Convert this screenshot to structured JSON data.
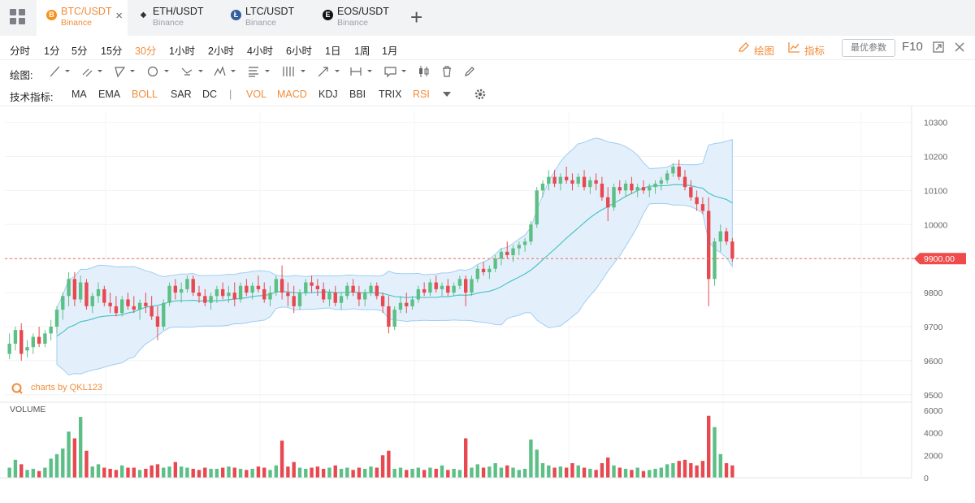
{
  "tabs": [
    {
      "pair": "BTC/USDT",
      "exchange": "Binance",
      "icon": "bitcoin-icon",
      "color": "#f7931a",
      "glyph": "B",
      "active": true
    },
    {
      "pair": "ETH/USDT",
      "exchange": "Binance",
      "icon": "ethereum-icon",
      "color": "#333333",
      "glyph": "◆",
      "active": false
    },
    {
      "pair": "LTC/USDT",
      "exchange": "Binance",
      "icon": "litecoin-icon",
      "color": "#345d9d",
      "glyph": "Ł",
      "active": false
    },
    {
      "pair": "EOS/USDT",
      "exchange": "Binance",
      "icon": "eos-icon",
      "color": "#111111",
      "glyph": "E",
      "active": false
    }
  ],
  "periods": [
    "分时",
    "1分",
    "5分",
    "15分",
    "30分",
    "1小时",
    "2小时",
    "4小时",
    "6小时",
    "1日",
    "1周",
    "1月"
  ],
  "active_period": "30分",
  "toolbar": {
    "draw": "绘图",
    "indicator": "指标",
    "best_params": "最优参数",
    "f10": "F10"
  },
  "drawing": {
    "label": "绘图:"
  },
  "indicators": {
    "label": "技术指标:",
    "items": [
      {
        "name": "MA",
        "on": false
      },
      {
        "name": "EMA",
        "on": false
      },
      {
        "name": "BOLL",
        "on": true
      },
      {
        "name": "SAR",
        "on": false
      },
      {
        "name": "DC",
        "on": false
      },
      {
        "name": "VOL",
        "on": true
      },
      {
        "name": "MACD",
        "on": true
      },
      {
        "name": "KDJ",
        "on": false
      },
      {
        "name": "BBI",
        "on": false
      },
      {
        "name": "TRIX",
        "on": false
      },
      {
        "name": "RSI",
        "on": true
      }
    ],
    "separator": "|"
  },
  "watermark": "charts by QKL123",
  "colors": {
    "accent": "#f08c3a",
    "up": "#5cbf86",
    "down": "#e8484f",
    "boll_mid": "#4fc3c3",
    "boll_fill": "#e3f0fc",
    "boll_edge": "#9fcdf1"
  },
  "chart_data": {
    "type": "candlestick",
    "price_ticks": [
      "10300",
      "10200",
      "10100",
      "10000",
      "9900",
      "9800",
      "9700",
      "9600",
      "9500"
    ],
    "price_ylim": [
      9490,
      10330
    ],
    "last_price": "9900.00",
    "volume_label": "VOLUME",
    "volume_ticks": [
      "6000",
      "4000",
      "2000",
      "0"
    ],
    "volume_ylim": [
      0,
      6200
    ],
    "candles": [
      [
        9620,
        9680,
        9605,
        9650,
        900
      ],
      [
        9650,
        9700,
        9630,
        9690,
        1600
      ],
      [
        9690,
        9710,
        9600,
        9620,
        1200
      ],
      [
        9630,
        9660,
        9610,
        9640,
        700
      ],
      [
        9640,
        9680,
        9620,
        9670,
        800
      ],
      [
        9670,
        9700,
        9640,
        9650,
        600
      ],
      [
        9650,
        9690,
        9640,
        9680,
        900
      ],
      [
        9680,
        9720,
        9660,
        9700,
        1700
      ],
      [
        9700,
        9760,
        9680,
        9750,
        2100
      ],
      [
        9750,
        9800,
        9720,
        9790,
        2600
      ],
      [
        9790,
        9860,
        9760,
        9840,
        4100
      ],
      [
        9840,
        9860,
        9760,
        9780,
        3500
      ],
      [
        9780,
        9850,
        9770,
        9830,
        5400
      ],
      [
        9830,
        9840,
        9750,
        9760,
        2400
      ],
      [
        9760,
        9800,
        9740,
        9790,
        1000
      ],
      [
        9790,
        9830,
        9770,
        9810,
        1200
      ],
      [
        9810,
        9820,
        9760,
        9770,
        900
      ],
      [
        9770,
        9800,
        9740,
        9760,
        800
      ],
      [
        9760,
        9790,
        9730,
        9740,
        700
      ],
      [
        9740,
        9790,
        9730,
        9780,
        1100
      ],
      [
        9780,
        9800,
        9750,
        9760,
        900
      ],
      [
        9760,
        9790,
        9740,
        9750,
        900
      ],
      [
        9750,
        9780,
        9720,
        9770,
        700
      ],
      [
        9770,
        9800,
        9740,
        9760,
        800
      ],
      [
        9760,
        9790,
        9720,
        9730,
        1100
      ],
      [
        9730,
        9760,
        9660,
        9700,
        1200
      ],
      [
        9700,
        9780,
        9690,
        9770,
        900
      ],
      [
        9770,
        9830,
        9760,
        9820,
        1000
      ],
      [
        9820,
        9840,
        9780,
        9800,
        1400
      ],
      [
        9800,
        9830,
        9770,
        9810,
        1000
      ],
      [
        9810,
        9850,
        9800,
        9840,
        900
      ],
      [
        9840,
        9850,
        9790,
        9800,
        800
      ],
      [
        9800,
        9820,
        9770,
        9790,
        700
      ],
      [
        9790,
        9810,
        9760,
        9770,
        900
      ],
      [
        9770,
        9800,
        9750,
        9790,
        800
      ],
      [
        9790,
        9820,
        9770,
        9810,
        800
      ],
      [
        9810,
        9830,
        9780,
        9790,
        900
      ],
      [
        9790,
        9820,
        9770,
        9800,
        1000
      ],
      [
        9800,
        9830,
        9760,
        9780,
        900
      ],
      [
        9780,
        9830,
        9770,
        9820,
        800
      ],
      [
        9820,
        9840,
        9790,
        9800,
        700
      ],
      [
        9800,
        9830,
        9780,
        9820,
        800
      ],
      [
        9820,
        9850,
        9800,
        9810,
        1000
      ],
      [
        9810,
        9830,
        9770,
        9780,
        900
      ],
      [
        9780,
        9820,
        9760,
        9800,
        700
      ],
      [
        9800,
        9850,
        9790,
        9840,
        1100
      ],
      [
        9840,
        9880,
        9780,
        9800,
        3300
      ],
      [
        9800,
        9830,
        9760,
        9790,
        1000
      ],
      [
        9790,
        9820,
        9740,
        9760,
        1400
      ],
      [
        9760,
        9810,
        9750,
        9800,
        900
      ],
      [
        9800,
        9840,
        9790,
        9830,
        800
      ],
      [
        9830,
        9850,
        9800,
        9820,
        900
      ],
      [
        9820,
        9840,
        9790,
        9810,
        1000
      ],
      [
        9810,
        9830,
        9770,
        9780,
        800
      ],
      [
        9780,
        9810,
        9760,
        9800,
        900
      ],
      [
        9800,
        9820,
        9760,
        9770,
        1100
      ],
      [
        9770,
        9800,
        9750,
        9790,
        800
      ],
      [
        9790,
        9830,
        9780,
        9820,
        900
      ],
      [
        9820,
        9840,
        9790,
        9800,
        700
      ],
      [
        9800,
        9820,
        9760,
        9780,
        900
      ],
      [
        9780,
        9810,
        9760,
        9800,
        800
      ],
      [
        9800,
        9830,
        9790,
        9820,
        1000
      ],
      [
        9820,
        9830,
        9780,
        9790,
        900
      ],
      [
        9790,
        9800,
        9740,
        9760,
        2000
      ],
      [
        9760,
        9790,
        9680,
        9700,
        2400
      ],
      [
        9700,
        9760,
        9690,
        9750,
        800
      ],
      [
        9750,
        9790,
        9740,
        9770,
        900
      ],
      [
        9770,
        9800,
        9740,
        9760,
        700
      ],
      [
        9760,
        9790,
        9750,
        9780,
        800
      ],
      [
        9780,
        9820,
        9770,
        9810,
        900
      ],
      [
        9810,
        9830,
        9790,
        9800,
        700
      ],
      [
        9800,
        9840,
        9790,
        9830,
        900
      ],
      [
        9830,
        9850,
        9800,
        9810,
        800
      ],
      [
        9810,
        9830,
        9790,
        9820,
        1100
      ],
      [
        9820,
        9840,
        9790,
        9800,
        700
      ],
      [
        9800,
        9830,
        9790,
        9820,
        800
      ],
      [
        9820,
        9850,
        9810,
        9840,
        700
      ],
      [
        9840,
        9850,
        9760,
        9800,
        3500
      ],
      [
        9800,
        9850,
        9790,
        9840,
        900
      ],
      [
        9840,
        9880,
        9830,
        9870,
        1200
      ],
      [
        9870,
        9890,
        9850,
        9860,
        900
      ],
      [
        9860,
        9880,
        9840,
        9870,
        1000
      ],
      [
        9870,
        9910,
        9860,
        9900,
        1300
      ],
      [
        9900,
        9930,
        9880,
        9920,
        900
      ],
      [
        9920,
        9950,
        9900,
        9910,
        1100
      ],
      [
        9910,
        9940,
        9890,
        9930,
        900
      ],
      [
        9930,
        9950,
        9910,
        9940,
        700
      ],
      [
        9940,
        9960,
        9920,
        9950,
        800
      ],
      [
        9950,
        10010,
        9940,
        10000,
        3400
      ],
      [
        10000,
        10110,
        9990,
        10100,
        2500
      ],
      [
        10100,
        10130,
        10080,
        10120,
        1300
      ],
      [
        10120,
        10160,
        10100,
        10140,
        1100
      ],
      [
        10140,
        10160,
        10110,
        10120,
        900
      ],
      [
        10120,
        10150,
        10100,
        10140,
        1000
      ],
      [
        10140,
        10170,
        10120,
        10130,
        900
      ],
      [
        10130,
        10150,
        10100,
        10120,
        1300
      ],
      [
        10120,
        10150,
        10110,
        10140,
        1100
      ],
      [
        10140,
        10160,
        10100,
        10110,
        900
      ],
      [
        10110,
        10140,
        10090,
        10130,
        800
      ],
      [
        10130,
        10150,
        10100,
        10120,
        700
      ],
      [
        10120,
        10140,
        10070,
        10080,
        1300
      ],
      [
        10080,
        10110,
        10010,
        10050,
        1800
      ],
      [
        10050,
        10120,
        10040,
        10110,
        1100
      ],
      [
        10110,
        10130,
        10090,
        10100,
        900
      ],
      [
        10100,
        10130,
        10080,
        10120,
        800
      ],
      [
        10120,
        10140,
        10090,
        10100,
        700
      ],
      [
        10100,
        10120,
        10080,
        10110,
        900
      ],
      [
        10110,
        10130,
        10090,
        10100,
        600
      ],
      [
        10100,
        10120,
        10080,
        10110,
        700
      ],
      [
        10110,
        10130,
        10090,
        10120,
        800
      ],
      [
        10120,
        10140,
        10100,
        10130,
        900
      ],
      [
        10130,
        10160,
        10120,
        10150,
        1200
      ],
      [
        10150,
        10180,
        10140,
        10170,
        1300
      ],
      [
        10170,
        10190,
        10130,
        10140,
        1500
      ],
      [
        10140,
        10160,
        10100,
        10110,
        1600
      ],
      [
        10110,
        10130,
        10070,
        10080,
        1300
      ],
      [
        10080,
        10100,
        10040,
        10060,
        1100
      ],
      [
        10060,
        10080,
        10030,
        10040,
        1500
      ],
      [
        10040,
        10080,
        9760,
        9840,
        5500
      ],
      [
        9840,
        9960,
        9820,
        9950,
        4500
      ],
      [
        9950,
        10000,
        9920,
        9980,
        2100
      ],
      [
        9980,
        9990,
        9940,
        9950,
        1300
      ],
      [
        9950,
        9960,
        9890,
        9900,
        1100
      ]
    ]
  }
}
